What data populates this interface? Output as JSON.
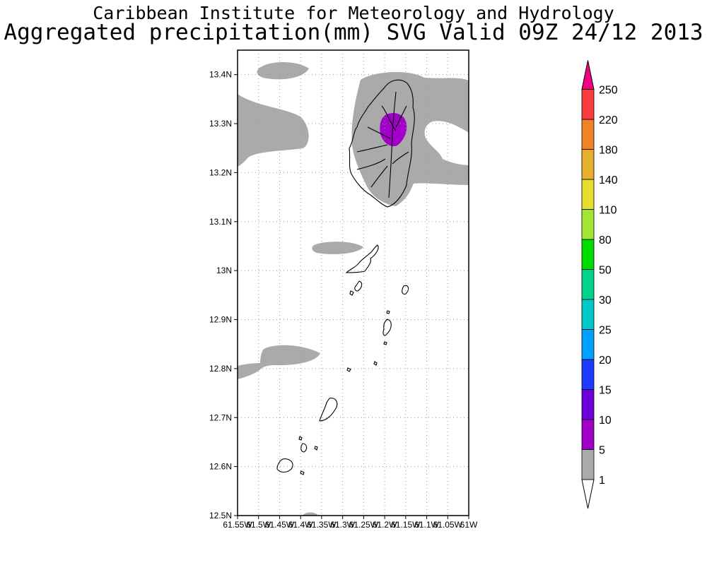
{
  "header": {
    "institution": "Caribbean Institute for Meteorology and Hydrology",
    "product": "Aggregated precipitation(mm) SVG Valid 09Z 24/12 2013"
  },
  "map": {
    "lat_ticks": [
      "13.4N",
      "13.3N",
      "13.2N",
      "13.1N",
      "13N",
      "12.9N",
      "12.8N",
      "12.7N",
      "12.6N",
      "12.5N"
    ],
    "lon_ticks": [
      "61.55W",
      "61.5W",
      "61.45W",
      "61.4W",
      "61.35W",
      "61.3W",
      "61.25W",
      "61.2W",
      "61.15W",
      "61.1W",
      "61.05W",
      "61W"
    ],
    "lat_range": [
      12.5,
      13.45
    ],
    "lon_range": [
      -61.55,
      -61.0
    ],
    "grid": true,
    "land_outline_color": "#000000",
    "rain_colors": {
      "light": "#aaaaaa",
      "moderate": "#a000c8"
    }
  },
  "colorbar": {
    "levels": [
      "1",
      "5",
      "10",
      "15",
      "20",
      "25",
      "30",
      "50",
      "80",
      "110",
      "140",
      "180",
      "220",
      "250"
    ],
    "colors": [
      "#aaaaaa",
      "#a000c8",
      "#6e00dc",
      "#1e3cff",
      "#00a0ff",
      "#00c8c8",
      "#00d28c",
      "#00dc00",
      "#a0e632",
      "#e6dc32",
      "#e6af2d",
      "#f08228",
      "#fa3c3c",
      "#f00082"
    ]
  }
}
